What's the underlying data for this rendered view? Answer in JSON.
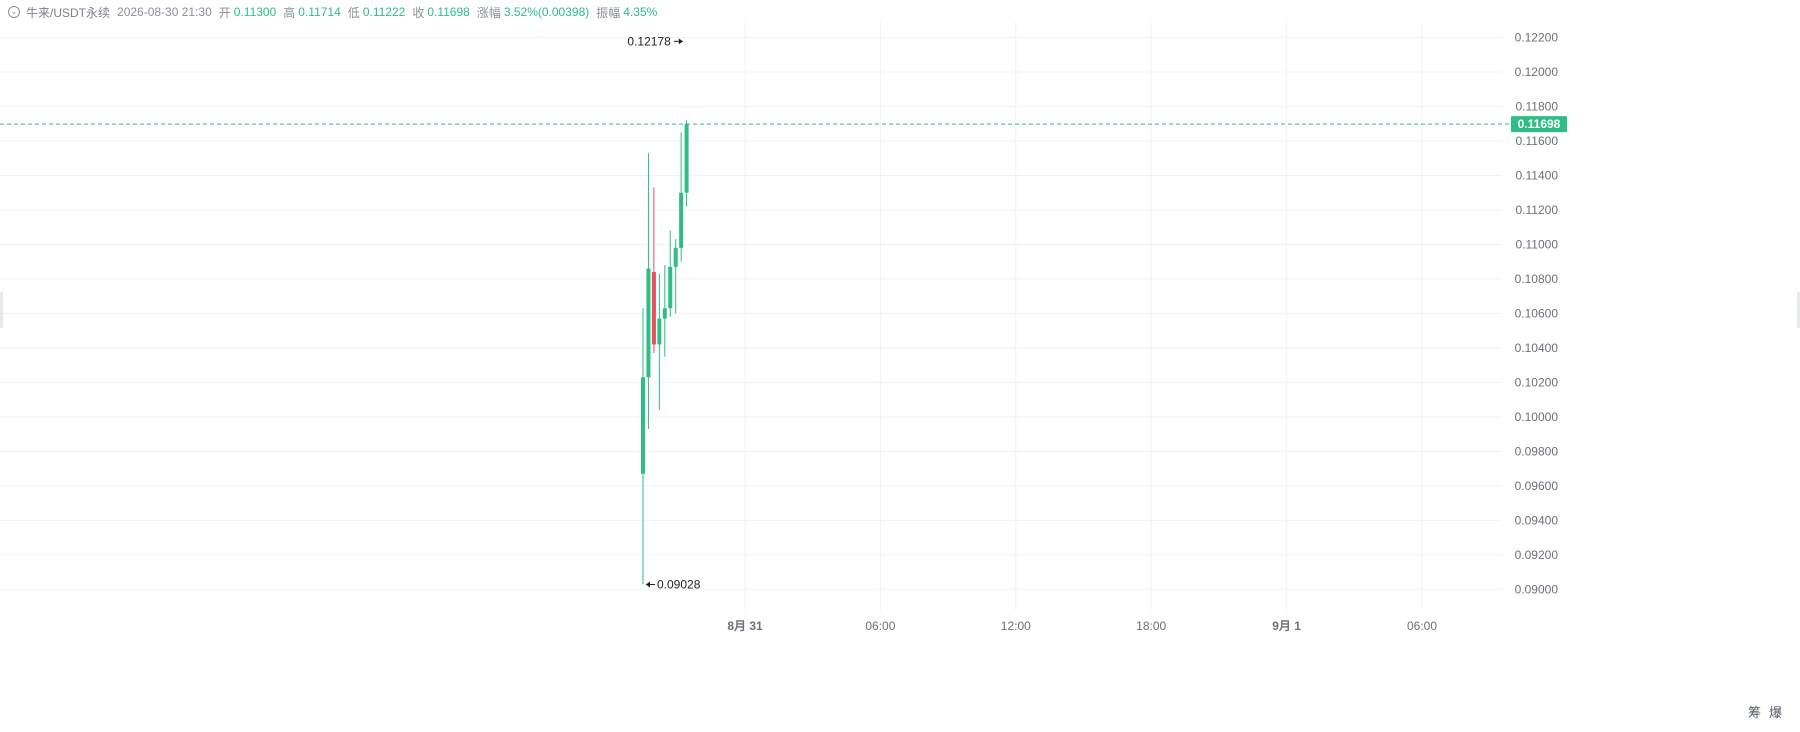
{
  "header": {
    "symbol": "牛来/USDT永续",
    "datetime": "2026-08-30 21:30",
    "open_label": "开",
    "open": "0.11300",
    "high_label": "高",
    "high": "0.11714",
    "low_label": "低",
    "low": "0.11222",
    "close_label": "收",
    "close": "0.11698",
    "change_label": "涨幅",
    "change": "3.52%(0.00398)",
    "amplitude_label": "振幅",
    "amplitude": "4.35%"
  },
  "side_buttons": {
    "left": "筹",
    "right": "爆"
  },
  "colors": {
    "up": "#2ebd85",
    "down": "#e0525c",
    "grid": "#f2f3f5",
    "axis_text": "#6b7079"
  },
  "chart_data": {
    "type": "candlestick",
    "y_ticks": [
      "0.12200",
      "0.12000",
      "0.11800",
      "0.11600",
      "0.11400",
      "0.11200",
      "0.11000",
      "0.10800",
      "0.10600",
      "0.10400",
      "0.10200",
      "0.10000",
      "0.09800",
      "0.09600",
      "0.09400",
      "0.09200",
      "0.09000"
    ],
    "ylim": [
      0.0888,
      0.1229
    ],
    "x_ticks": [
      {
        "label": "8月 31",
        "bold": true
      },
      {
        "label": "06:00",
        "bold": false
      },
      {
        "label": "12:00",
        "bold": false
      },
      {
        "label": "18:00",
        "bold": false
      },
      {
        "label": "9月 1",
        "bold": true
      },
      {
        "label": "06:00",
        "bold": false
      }
    ],
    "current_price": "0.11698",
    "max_annotation": "0.12178",
    "min_annotation": "0.09028",
    "candles": [
      {
        "o": 0.0967,
        "h": 0.1063,
        "l": 0.0903,
        "c": 0.1023
      },
      {
        "o": 0.1023,
        "h": 0.1153,
        "l": 0.0993,
        "c": 0.1086
      },
      {
        "o": 0.1084,
        "h": 0.1133,
        "l": 0.1037,
        "c": 0.1042
      },
      {
        "o": 0.1042,
        "h": 0.1083,
        "l": 0.1004,
        "c": 0.1057
      },
      {
        "o": 0.1057,
        "h": 0.1088,
        "l": 0.1035,
        "c": 0.1063
      },
      {
        "o": 0.1063,
        "h": 0.1108,
        "l": 0.1058,
        "c": 0.1087
      },
      {
        "o": 0.1087,
        "h": 0.1103,
        "l": 0.106,
        "c": 0.1098
      },
      {
        "o": 0.1098,
        "h": 0.1165,
        "l": 0.109,
        "c": 0.113
      },
      {
        "o": 0.113,
        "h": 0.1172,
        "l": 0.1122,
        "c": 0.117
      }
    ]
  }
}
